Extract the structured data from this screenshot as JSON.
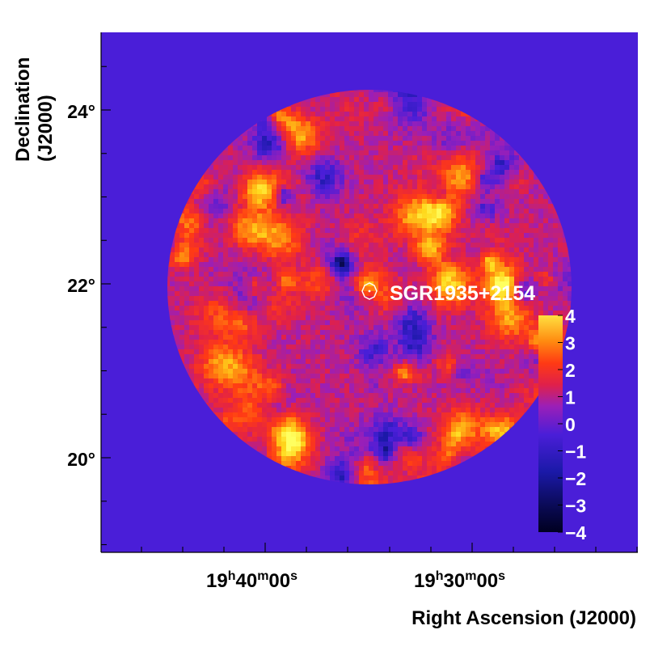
{
  "chart_data": {
    "type": "heatmap",
    "title": "",
    "xlabel": "Right Ascension (J2000)",
    "ylabel_line1": "Declination",
    "ylabel_line2": "(J2000)",
    "x_ticks": [
      {
        "h": "19",
        "m": "40",
        "s": "00",
        "label": "19h40m00s"
      },
      {
        "h": "19",
        "m": "30",
        "s": "00",
        "label": "19h30m00s"
      }
    ],
    "y_ticks": [
      "24°",
      "22°",
      "20°"
    ],
    "y_tick_values": [
      24,
      22,
      20
    ],
    "ylim": [
      19.0,
      24.9
    ],
    "source": {
      "name": "SGR1935+2154",
      "dec": 21.9
    },
    "colorbar": {
      "range": [
        -4,
        4
      ],
      "ticks": [
        "4",
        "3",
        "2",
        "1",
        "0",
        "−1",
        "−2",
        "−3",
        "−4"
      ],
      "palette": [
        "#000020",
        "#0a0a55",
        "#1b19a8",
        "#4a1ed8",
        "#9a1fb8",
        "#e0204a",
        "#ff3a14",
        "#ff8a10",
        "#ffd81c",
        "#ffff60"
      ]
    },
    "background_color": "#4a1ed8",
    "map_description_values": "significance map, values roughly between -4 and +4"
  }
}
